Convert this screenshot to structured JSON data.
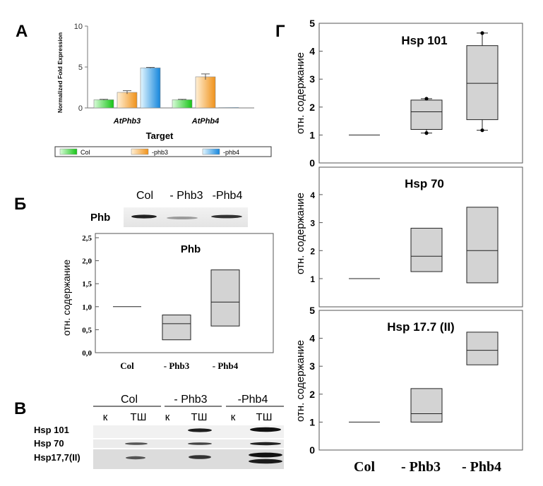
{
  "panel_letters": {
    "a": "А",
    "b": "Б",
    "v": "В",
    "g": "Г"
  },
  "chart_data": [
    {
      "id": "A",
      "type": "bar",
      "title": "",
      "ylabel": "Normalized Fold Expression",
      "xlabel": "Target",
      "ylim": [
        0,
        10
      ],
      "yticks": [
        0,
        5,
        10
      ],
      "categories": [
        "AtPhb3",
        "AtPhb4"
      ],
      "series": [
        {
          "name": "Col",
          "values": [
            1.0,
            1.0
          ],
          "errors": [
            0.05,
            0.05
          ],
          "color_from": "#c6f7c6",
          "color_to": "#1ecb1e"
        },
        {
          "name": "-phb3",
          "values": [
            1.9,
            3.8
          ],
          "errors": [
            0.2,
            0.35
          ],
          "color_from": "#fde3b8",
          "color_to": "#f29a1f"
        },
        {
          "name": "-phb4",
          "values": [
            4.9,
            0.05
          ],
          "errors": [
            0.05,
            0.0
          ],
          "color_from": "#cdeeff",
          "color_to": "#1b8fe0"
        }
      ],
      "legend": "bottom"
    },
    {
      "id": "B",
      "type": "box",
      "title": "Phb",
      "ylabel": "отн. содержание",
      "ylim": [
        0,
        2.5
      ],
      "yticks": [
        "0,0",
        "0,5",
        "1,0",
        "1,5",
        "2,0",
        "2,5"
      ],
      "categories": [
        "Col",
        "- Phb3",
        "- Phb4"
      ],
      "boxes": [
        {
          "line": 1.0
        },
        {
          "q1": 0.28,
          "median": 0.63,
          "q3": 0.82
        },
        {
          "q1": 0.58,
          "median": 1.1,
          "q3": 1.8
        }
      ]
    },
    {
      "id": "G1",
      "type": "box",
      "title": "Hsp 101",
      "ylabel": "отн. содержание",
      "ylim": [
        0,
        5
      ],
      "yticks": [
        "0",
        "1",
        "2",
        "3",
        "4",
        "5"
      ],
      "boxes": [
        {
          "line": 1.0
        },
        {
          "q1": 1.2,
          "median": 1.83,
          "q3": 2.25,
          "outliers": [
            1.07,
            2.3
          ]
        },
        {
          "q1": 1.55,
          "median": 2.85,
          "q3": 4.2,
          "outliers": [
            1.17,
            4.65
          ]
        }
      ]
    },
    {
      "id": "G2",
      "type": "box",
      "title": "Hsp 70",
      "ylabel": "отн. содержание",
      "ylim": [
        0,
        5
      ],
      "yticks": [
        "1",
        "2",
        "3",
        "4"
      ],
      "boxes": [
        {
          "line": 1.0
        },
        {
          "q1": 1.25,
          "median": 1.8,
          "q3": 2.8
        },
        {
          "q1": 0.85,
          "median": 2.0,
          "q3": 3.55
        }
      ]
    },
    {
      "id": "G3",
      "type": "box",
      "title": "Hsp 17.7 (II)",
      "ylabel": "отн. содержание",
      "ylim": [
        0,
        5
      ],
      "yticks": [
        "0",
        "1",
        "2",
        "3",
        "4",
        "5"
      ],
      "categories": [
        "Col",
        "- Phb3",
        "- Phb4"
      ],
      "boxes": [
        {
          "line": 1.0
        },
        {
          "q1": 1.0,
          "median": 1.3,
          "q3": 2.2
        },
        {
          "q1": 3.05,
          "median": 3.57,
          "q3": 4.22
        }
      ]
    }
  ],
  "blot_b": {
    "row_label": "Phb",
    "lanes": [
      "Col",
      "- Phb3",
      "-Phb4"
    ]
  },
  "blot_v": {
    "groups": [
      "Col",
      "- Phb3",
      "-Phb4"
    ],
    "sub_k": "к",
    "sub_tsh": "ТШ",
    "rows": [
      "Hsp 101",
      "Hsp 70",
      "Hsp17,7(II)"
    ]
  }
}
